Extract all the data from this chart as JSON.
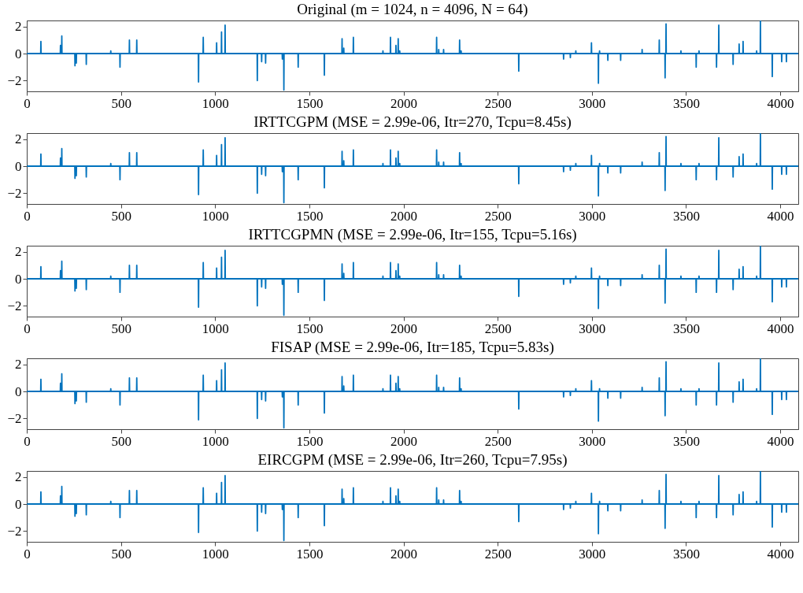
{
  "chart_data": [
    {
      "type": "line",
      "title": "Original (m = 1024, n = 4096, N = 64)",
      "xlim": [
        0,
        4096
      ],
      "ylim": [
        -2.8,
        2.45
      ],
      "xticks": [
        0,
        500,
        1000,
        1500,
        2000,
        2500,
        3000,
        3500,
        4000
      ],
      "yticks": [
        -2,
        0,
        2
      ],
      "grid": false,
      "color": "#0072bd",
      "x": [
        1,
        74,
        75,
        76,
        178,
        179,
        180,
        185,
        186,
        187,
        255,
        256,
        257,
        262,
        263,
        264,
        315,
        316,
        317,
        445,
        446,
        447,
        494,
        495,
        496,
        544,
        545,
        546,
        583,
        584,
        585,
        911,
        912,
        913,
        936,
        937,
        938,
        1007,
        1008,
        1009,
        1033,
        1034,
        1035,
        1052,
        1053,
        1054,
        1223,
        1224,
        1225,
        1246,
        1247,
        1248,
        1267,
        1268,
        1269,
        1356,
        1357,
        1358,
        1364,
        1365,
        1366,
        1440,
        1441,
        1442,
        1579,
        1580,
        1581,
        1673,
        1674,
        1675,
        1682,
        1683,
        1684,
        1733,
        1734,
        1735,
        1890,
        1891,
        1892,
        1930,
        1931,
        1932,
        1959,
        1960,
        1961,
        1971,
        1972,
        1973,
        1979,
        1980,
        1981,
        2175,
        2176,
        2177,
        2186,
        2187,
        2188,
        2212,
        2213,
        2214,
        2297,
        2298,
        2299,
        2305,
        2306,
        2307,
        2611,
        2612,
        2613,
        2849,
        2850,
        2851,
        2885,
        2886,
        2887,
        2914,
        2915,
        2916,
        2997,
        2998,
        2999,
        3034,
        3035,
        3036,
        3040,
        3041,
        3042,
        3084,
        3085,
        3086,
        3152,
        3153,
        3154,
        3266,
        3267,
        3268,
        3357,
        3358,
        3359,
        3388,
        3389,
        3390,
        3393,
        3394,
        3395,
        3472,
        3473,
        3474,
        3553,
        3554,
        3555,
        3568,
        3569,
        3570,
        3661,
        3662,
        3663,
        3673,
        3674,
        3675,
        3749,
        3750,
        3751,
        3781,
        3782,
        3783,
        3802,
        3803,
        3804,
        3874,
        3875,
        3876,
        3894,
        3895,
        3896,
        3957,
        3958,
        3959,
        4007,
        4008,
        4009,
        4032,
        4033,
        4034,
        4096
      ],
      "values": [
        0,
        0,
        0.9,
        0,
        0,
        0.6,
        0,
        0,
        1.3,
        0,
        0,
        -0.9,
        0,
        0,
        -0.7,
        0,
        0,
        -0.8,
        0,
        0,
        0.2,
        0,
        0,
        -1,
        0,
        0,
        1,
        0,
        0,
        1,
        0,
        0,
        -2.1,
        0,
        0,
        1.2,
        0,
        0,
        0.8,
        0,
        0,
        1.6,
        0,
        0,
        2.1,
        0,
        0,
        -2,
        0,
        0,
        -0.6,
        0,
        0,
        -0.7,
        0,
        0,
        -0.4,
        0,
        0,
        -2.7,
        0,
        0,
        -1,
        0,
        0,
        -1.6,
        0,
        0,
        1.1,
        0,
        0,
        0.4,
        0,
        0,
        1.2,
        0,
        0,
        0.2,
        0,
        0,
        1.2,
        0,
        0,
        0.6,
        0,
        0,
        1.1,
        0,
        0,
        0.2,
        0,
        0,
        1.2,
        0,
        0,
        0.3,
        0,
        0,
        0.3,
        0,
        0,
        1,
        0,
        0,
        0.2,
        0,
        0,
        -1.3,
        0,
        0,
        -0.4,
        0,
        0,
        -0.3,
        0,
        0,
        0.2,
        0,
        0,
        0.8,
        0,
        0,
        -2.2,
        0,
        0,
        0.2,
        0,
        0,
        -0.5,
        0,
        0,
        -0.5,
        0,
        0,
        0.3,
        0,
        0,
        1,
        0,
        0,
        -1.8,
        0,
        0,
        2.2,
        0,
        0,
        0.2,
        0,
        0,
        -1,
        0,
        0,
        0.2,
        0,
        0,
        -1,
        0,
        0,
        2.1,
        0,
        0,
        -0.8,
        0,
        0,
        0.7,
        0,
        0,
        0.9,
        0,
        0,
        0.2,
        0,
        0,
        2.4,
        0,
        0,
        -1.7,
        0,
        0,
        -0.6,
        0,
        0,
        -0.6,
        0,
        0
      ]
    },
    {
      "type": "line",
      "title": "IRTTCGPM (MSE = 2.99e-06, Itr=270, Tcpu=8.45s)",
      "xlim": [
        0,
        4096
      ],
      "ylim": [
        -2.8,
        2.45
      ],
      "xticks": [
        0,
        500,
        1000,
        1500,
        2000,
        2500,
        3000,
        3500,
        4000
      ],
      "yticks": [
        -2,
        0,
        2
      ],
      "grid": false,
      "color": "#0072bd",
      "x": [
        1,
        74,
        75,
        76,
        178,
        179,
        180,
        185,
        186,
        187,
        255,
        256,
        257,
        262,
        263,
        264,
        315,
        316,
        317,
        445,
        446,
        447,
        494,
        495,
        496,
        544,
        545,
        546,
        583,
        584,
        585,
        911,
        912,
        913,
        936,
        937,
        938,
        1007,
        1008,
        1009,
        1033,
        1034,
        1035,
        1052,
        1053,
        1054,
        1223,
        1224,
        1225,
        1246,
        1247,
        1248,
        1267,
        1268,
        1269,
        1356,
        1357,
        1358,
        1364,
        1365,
        1366,
        1440,
        1441,
        1442,
        1579,
        1580,
        1581,
        1673,
        1674,
        1675,
        1682,
        1683,
        1684,
        1733,
        1734,
        1735,
        1890,
        1891,
        1892,
        1930,
        1931,
        1932,
        1959,
        1960,
        1961,
        1971,
        1972,
        1973,
        1979,
        1980,
        1981,
        2175,
        2176,
        2177,
        2186,
        2187,
        2188,
        2212,
        2213,
        2214,
        2297,
        2298,
        2299,
        2305,
        2306,
        2307,
        2611,
        2612,
        2613,
        2849,
        2850,
        2851,
        2885,
        2886,
        2887,
        2914,
        2915,
        2916,
        2997,
        2998,
        2999,
        3034,
        3035,
        3036,
        3040,
        3041,
        3042,
        3084,
        3085,
        3086,
        3152,
        3153,
        3154,
        3266,
        3267,
        3268,
        3357,
        3358,
        3359,
        3388,
        3389,
        3390,
        3393,
        3394,
        3395,
        3472,
        3473,
        3474,
        3553,
        3554,
        3555,
        3568,
        3569,
        3570,
        3661,
        3662,
        3663,
        3673,
        3674,
        3675,
        3749,
        3750,
        3751,
        3781,
        3782,
        3783,
        3802,
        3803,
        3804,
        3874,
        3875,
        3876,
        3894,
        3895,
        3896,
        3957,
        3958,
        3959,
        4007,
        4008,
        4009,
        4032,
        4033,
        4034,
        4096
      ],
      "values": [
        0,
        0,
        0.9,
        0,
        0,
        0.6,
        0,
        0,
        1.3,
        0,
        0,
        -0.9,
        0,
        0,
        -0.7,
        0,
        0,
        -0.8,
        0,
        0,
        0.2,
        0,
        0,
        -1,
        0,
        0,
        1,
        0,
        0,
        1,
        0,
        0,
        -2.1,
        0,
        0,
        1.2,
        0,
        0,
        0.8,
        0,
        0,
        1.6,
        0,
        0,
        2.1,
        0,
        0,
        -2,
        0,
        0,
        -0.6,
        0,
        0,
        -0.7,
        0,
        0,
        -0.4,
        0,
        0,
        -2.7,
        0,
        0,
        -1,
        0,
        0,
        -1.6,
        0,
        0,
        1.1,
        0,
        0,
        0.4,
        0,
        0,
        1.2,
        0,
        0,
        0.2,
        0,
        0,
        1.2,
        0,
        0,
        0.6,
        0,
        0,
        1.1,
        0,
        0,
        0.2,
        0,
        0,
        1.2,
        0,
        0,
        0.3,
        0,
        0,
        0.3,
        0,
        0,
        1,
        0,
        0,
        0.2,
        0,
        0,
        -1.3,
        0,
        0,
        -0.4,
        0,
        0,
        -0.3,
        0,
        0,
        0.2,
        0,
        0,
        0.8,
        0,
        0,
        -2.2,
        0,
        0,
        0.2,
        0,
        0,
        -0.5,
        0,
        0,
        -0.5,
        0,
        0,
        0.3,
        0,
        0,
        1,
        0,
        0,
        -1.8,
        0,
        0,
        2.2,
        0,
        0,
        0.2,
        0,
        0,
        -1,
        0,
        0,
        0.2,
        0,
        0,
        -1,
        0,
        0,
        2.1,
        0,
        0,
        -0.8,
        0,
        0,
        0.7,
        0,
        0,
        0.9,
        0,
        0,
        0.2,
        0,
        0,
        2.4,
        0,
        0,
        -1.7,
        0,
        0,
        -0.6,
        0,
        0,
        -0.6,
        0,
        0
      ]
    },
    {
      "type": "line",
      "title": "IRTTCGPMN (MSE = 2.99e-06, Itr=155, Tcpu=5.16s)",
      "xlim": [
        0,
        4096
      ],
      "ylim": [
        -2.8,
        2.45
      ],
      "xticks": [
        0,
        500,
        1000,
        1500,
        2000,
        2500,
        3000,
        3500,
        4000
      ],
      "yticks": [
        -2,
        0,
        2
      ],
      "grid": false,
      "color": "#0072bd",
      "x": [
        1,
        74,
        75,
        76,
        178,
        179,
        180,
        185,
        186,
        187,
        255,
        256,
        257,
        262,
        263,
        264,
        315,
        316,
        317,
        445,
        446,
        447,
        494,
        495,
        496,
        544,
        545,
        546,
        583,
        584,
        585,
        911,
        912,
        913,
        936,
        937,
        938,
        1007,
        1008,
        1009,
        1033,
        1034,
        1035,
        1052,
        1053,
        1054,
        1223,
        1224,
        1225,
        1246,
        1247,
        1248,
        1267,
        1268,
        1269,
        1356,
        1357,
        1358,
        1364,
        1365,
        1366,
        1440,
        1441,
        1442,
        1579,
        1580,
        1581,
        1673,
        1674,
        1675,
        1682,
        1683,
        1684,
        1733,
        1734,
        1735,
        1890,
        1891,
        1892,
        1930,
        1931,
        1932,
        1959,
        1960,
        1961,
        1971,
        1972,
        1973,
        1979,
        1980,
        1981,
        2175,
        2176,
        2177,
        2186,
        2187,
        2188,
        2212,
        2213,
        2214,
        2297,
        2298,
        2299,
        2305,
        2306,
        2307,
        2611,
        2612,
        2613,
        2849,
        2850,
        2851,
        2885,
        2886,
        2887,
        2914,
        2915,
        2916,
        2997,
        2998,
        2999,
        3034,
        3035,
        3036,
        3040,
        3041,
        3042,
        3084,
        3085,
        3086,
        3152,
        3153,
        3154,
        3266,
        3267,
        3268,
        3357,
        3358,
        3359,
        3388,
        3389,
        3390,
        3393,
        3394,
        3395,
        3472,
        3473,
        3474,
        3553,
        3554,
        3555,
        3568,
        3569,
        3570,
        3661,
        3662,
        3663,
        3673,
        3674,
        3675,
        3749,
        3750,
        3751,
        3781,
        3782,
        3783,
        3802,
        3803,
        3804,
        3874,
        3875,
        3876,
        3894,
        3895,
        3896,
        3957,
        3958,
        3959,
        4007,
        4008,
        4009,
        4032,
        4033,
        4034,
        4096
      ],
      "values": [
        0,
        0,
        0.9,
        0,
        0,
        0.6,
        0,
        0,
        1.3,
        0,
        0,
        -0.9,
        0,
        0,
        -0.7,
        0,
        0,
        -0.8,
        0,
        0,
        0.2,
        0,
        0,
        -1,
        0,
        0,
        1,
        0,
        0,
        1,
        0,
        0,
        -2.1,
        0,
        0,
        1.2,
        0,
        0,
        0.8,
        0,
        0,
        1.6,
        0,
        0,
        2.1,
        0,
        0,
        -2,
        0,
        0,
        -0.6,
        0,
        0,
        -0.7,
        0,
        0,
        -0.4,
        0,
        0,
        -2.7,
        0,
        0,
        -1,
        0,
        0,
        -1.6,
        0,
        0,
        1.1,
        0,
        0,
        0.4,
        0,
        0,
        1.2,
        0,
        0,
        0.2,
        0,
        0,
        1.2,
        0,
        0,
        0.6,
        0,
        0,
        1.1,
        0,
        0,
        0.2,
        0,
        0,
        1.2,
        0,
        0,
        0.3,
        0,
        0,
        0.3,
        0,
        0,
        1,
        0,
        0,
        0.2,
        0,
        0,
        -1.3,
        0,
        0,
        -0.4,
        0,
        0,
        -0.3,
        0,
        0,
        0.2,
        0,
        0,
        0.8,
        0,
        0,
        -2.2,
        0,
        0,
        0.2,
        0,
        0,
        -0.5,
        0,
        0,
        -0.5,
        0,
        0,
        0.3,
        0,
        0,
        1,
        0,
        0,
        -1.8,
        0,
        0,
        2.2,
        0,
        0,
        0.2,
        0,
        0,
        -1,
        0,
        0,
        0.2,
        0,
        0,
        -1,
        0,
        0,
        2.1,
        0,
        0,
        -0.8,
        0,
        0,
        0.7,
        0,
        0,
        0.9,
        0,
        0,
        0.2,
        0,
        0,
        2.4,
        0,
        0,
        -1.7,
        0,
        0,
        -0.6,
        0,
        0,
        -0.6,
        0,
        0
      ]
    },
    {
      "type": "line",
      "title": "FISAP (MSE = 2.99e-06, Itr=185, Tcpu=5.83s)",
      "xlim": [
        0,
        4096
      ],
      "ylim": [
        -2.8,
        2.45
      ],
      "xticks": [
        0,
        500,
        1000,
        1500,
        2000,
        2500,
        3000,
        3500,
        4000
      ],
      "yticks": [
        -2,
        0,
        2
      ],
      "grid": false,
      "color": "#0072bd",
      "x": [
        1,
        74,
        75,
        76,
        178,
        179,
        180,
        185,
        186,
        187,
        255,
        256,
        257,
        262,
        263,
        264,
        315,
        316,
        317,
        445,
        446,
        447,
        494,
        495,
        496,
        544,
        545,
        546,
        583,
        584,
        585,
        911,
        912,
        913,
        936,
        937,
        938,
        1007,
        1008,
        1009,
        1033,
        1034,
        1035,
        1052,
        1053,
        1054,
        1223,
        1224,
        1225,
        1246,
        1247,
        1248,
        1267,
        1268,
        1269,
        1356,
        1357,
        1358,
        1364,
        1365,
        1366,
        1440,
        1441,
        1442,
        1579,
        1580,
        1581,
        1673,
        1674,
        1675,
        1682,
        1683,
        1684,
        1733,
        1734,
        1735,
        1890,
        1891,
        1892,
        1930,
        1931,
        1932,
        1959,
        1960,
        1961,
        1971,
        1972,
        1973,
        1979,
        1980,
        1981,
        2175,
        2176,
        2177,
        2186,
        2187,
        2188,
        2212,
        2213,
        2214,
        2297,
        2298,
        2299,
        2305,
        2306,
        2307,
        2611,
        2612,
        2613,
        2849,
        2850,
        2851,
        2885,
        2886,
        2887,
        2914,
        2915,
        2916,
        2997,
        2998,
        2999,
        3034,
        3035,
        3036,
        3040,
        3041,
        3042,
        3084,
        3085,
        3086,
        3152,
        3153,
        3154,
        3266,
        3267,
        3268,
        3357,
        3358,
        3359,
        3388,
        3389,
        3390,
        3393,
        3394,
        3395,
        3472,
        3473,
        3474,
        3553,
        3554,
        3555,
        3568,
        3569,
        3570,
        3661,
        3662,
        3663,
        3673,
        3674,
        3675,
        3749,
        3750,
        3751,
        3781,
        3782,
        3783,
        3802,
        3803,
        3804,
        3874,
        3875,
        3876,
        3894,
        3895,
        3896,
        3957,
        3958,
        3959,
        4007,
        4008,
        4009,
        4032,
        4033,
        4034,
        4096
      ],
      "values": [
        0,
        0,
        0.9,
        0,
        0,
        0.6,
        0,
        0,
        1.3,
        0,
        0,
        -0.9,
        0,
        0,
        -0.7,
        0,
        0,
        -0.8,
        0,
        0,
        0.2,
        0,
        0,
        -1,
        0,
        0,
        1,
        0,
        0,
        1,
        0,
        0,
        -2.1,
        0,
        0,
        1.2,
        0,
        0,
        0.8,
        0,
        0,
        1.6,
        0,
        0,
        2.1,
        0,
        0,
        -2,
        0,
        0,
        -0.6,
        0,
        0,
        -0.7,
        0,
        0,
        -0.4,
        0,
        0,
        -2.7,
        0,
        0,
        -1,
        0,
        0,
        -1.6,
        0,
        0,
        1.1,
        0,
        0,
        0.4,
        0,
        0,
        1.2,
        0,
        0,
        0.2,
        0,
        0,
        1.2,
        0,
        0,
        0.6,
        0,
        0,
        1.1,
        0,
        0,
        0.2,
        0,
        0,
        1.2,
        0,
        0,
        0.3,
        0,
        0,
        0.3,
        0,
        0,
        1,
        0,
        0,
        0.2,
        0,
        0,
        -1.3,
        0,
        0,
        -0.4,
        0,
        0,
        -0.3,
        0,
        0,
        0.2,
        0,
        0,
        0.8,
        0,
        0,
        -2.2,
        0,
        0,
        0.2,
        0,
        0,
        -0.5,
        0,
        0,
        -0.5,
        0,
        0,
        0.3,
        0,
        0,
        1,
        0,
        0,
        -1.8,
        0,
        0,
        2.2,
        0,
        0,
        0.2,
        0,
        0,
        -1,
        0,
        0,
        0.2,
        0,
        0,
        -1,
        0,
        0,
        2.1,
        0,
        0,
        -0.8,
        0,
        0,
        0.7,
        0,
        0,
        0.9,
        0,
        0,
        0.2,
        0,
        0,
        2.4,
        0,
        0,
        -1.7,
        0,
        0,
        -0.6,
        0,
        0,
        -0.6,
        0,
        0
      ]
    },
    {
      "type": "line",
      "title": "EIRCGPM (MSE = 2.99e-06, Itr=260, Tcpu=7.95s)",
      "xlim": [
        0,
        4096
      ],
      "ylim": [
        -2.8,
        2.45
      ],
      "xticks": [
        0,
        500,
        1000,
        1500,
        2000,
        2500,
        3000,
        3500,
        4000
      ],
      "yticks": [
        -2,
        0,
        2
      ],
      "grid": false,
      "color": "#0072bd",
      "x": [
        1,
        74,
        75,
        76,
        178,
        179,
        180,
        185,
        186,
        187,
        255,
        256,
        257,
        262,
        263,
        264,
        315,
        316,
        317,
        445,
        446,
        447,
        494,
        495,
        496,
        544,
        545,
        546,
        583,
        584,
        585,
        911,
        912,
        913,
        936,
        937,
        938,
        1007,
        1008,
        1009,
        1033,
        1034,
        1035,
        1052,
        1053,
        1054,
        1223,
        1224,
        1225,
        1246,
        1247,
        1248,
        1267,
        1268,
        1269,
        1356,
        1357,
        1358,
        1364,
        1365,
        1366,
        1440,
        1441,
        1442,
        1579,
        1580,
        1581,
        1673,
        1674,
        1675,
        1682,
        1683,
        1684,
        1733,
        1734,
        1735,
        1890,
        1891,
        1892,
        1930,
        1931,
        1932,
        1959,
        1960,
        1961,
        1971,
        1972,
        1973,
        1979,
        1980,
        1981,
        2175,
        2176,
        2177,
        2186,
        2187,
        2188,
        2212,
        2213,
        2214,
        2297,
        2298,
        2299,
        2305,
        2306,
        2307,
        2611,
        2612,
        2613,
        2849,
        2850,
        2851,
        2885,
        2886,
        2887,
        2914,
        2915,
        2916,
        2997,
        2998,
        2999,
        3034,
        3035,
        3036,
        3040,
        3041,
        3042,
        3084,
        3085,
        3086,
        3152,
        3153,
        3154,
        3266,
        3267,
        3268,
        3357,
        3358,
        3359,
        3388,
        3389,
        3390,
        3393,
        3394,
        3395,
        3472,
        3473,
        3474,
        3553,
        3554,
        3555,
        3568,
        3569,
        3570,
        3661,
        3662,
        3663,
        3673,
        3674,
        3675,
        3749,
        3750,
        3751,
        3781,
        3782,
        3783,
        3802,
        3803,
        3804,
        3874,
        3875,
        3876,
        3894,
        3895,
        3896,
        3957,
        3958,
        3959,
        4007,
        4008,
        4009,
        4032,
        4033,
        4034,
        4096
      ],
      "values": [
        0,
        0,
        0.9,
        0,
        0,
        0.6,
        0,
        0,
        1.3,
        0,
        0,
        -0.9,
        0,
        0,
        -0.7,
        0,
        0,
        -0.8,
        0,
        0,
        0.2,
        0,
        0,
        -1,
        0,
        0,
        1,
        0,
        0,
        1,
        0,
        0,
        -2.1,
        0,
        0,
        1.2,
        0,
        0,
        0.8,
        0,
        0,
        1.6,
        0,
        0,
        2.1,
        0,
        0,
        -2,
        0,
        0,
        -0.6,
        0,
        0,
        -0.7,
        0,
        0,
        -0.4,
        0,
        0,
        -2.7,
        0,
        0,
        -1,
        0,
        0,
        -1.6,
        0,
        0,
        1.1,
        0,
        0,
        0.4,
        0,
        0,
        1.2,
        0,
        0,
        0.2,
        0,
        0,
        1.2,
        0,
        0,
        0.6,
        0,
        0,
        1.1,
        0,
        0,
        0.2,
        0,
        0,
        1.2,
        0,
        0,
        0.3,
        0,
        0,
        0.3,
        0,
        0,
        1,
        0,
        0,
        0.2,
        0,
        0,
        -1.3,
        0,
        0,
        -0.4,
        0,
        0,
        -0.3,
        0,
        0,
        0.2,
        0,
        0,
        0.8,
        0,
        0,
        -2.2,
        0,
        0,
        0.2,
        0,
        0,
        -0.5,
        0,
        0,
        -0.5,
        0,
        0,
        0.3,
        0,
        0,
        1,
        0,
        0,
        -1.8,
        0,
        0,
        2.2,
        0,
        0,
        0.2,
        0,
        0,
        -1,
        0,
        0,
        0.2,
        0,
        0,
        -1,
        0,
        0,
        2.1,
        0,
        0,
        -0.8,
        0,
        0,
        0.7,
        0,
        0,
        0.9,
        0,
        0,
        0.2,
        0,
        0,
        2.4,
        0,
        0,
        -1.7,
        0,
        0,
        -0.6,
        0,
        0,
        -0.6,
        0,
        0
      ]
    }
  ]
}
